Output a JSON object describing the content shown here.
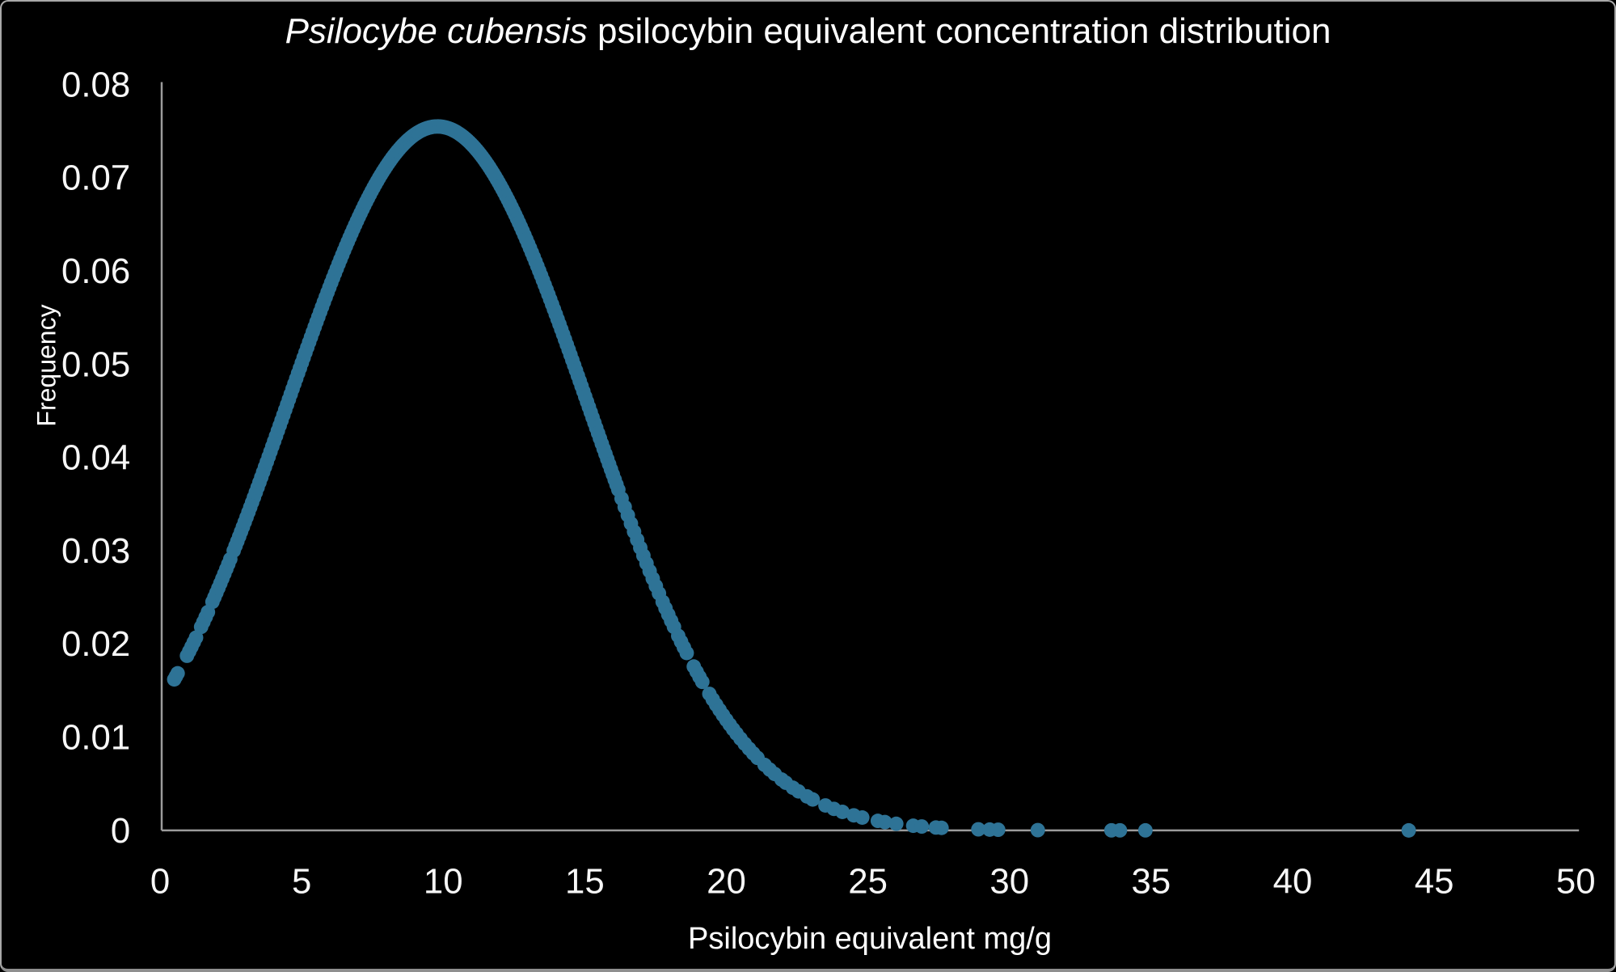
{
  "chart_data": {
    "type": "scatter",
    "title": "Psilocybe cubensis psilocybin equivalent concentration distribution",
    "title_italic_part": "Psilocybe cubensis",
    "title_regular_part": " psilocybin equivalent concentration distribution",
    "xlabel": "Psilocybin equivalent mg/g",
    "ylabel": "Frequency",
    "xlim": [
      0,
      50
    ],
    "ylim": [
      0,
      0.08
    ],
    "x_tick_labels": [
      "0",
      "5",
      "10",
      "15",
      "20",
      "25",
      "30",
      "35",
      "40",
      "45",
      "50"
    ],
    "x_tick_values": [
      0,
      5,
      10,
      15,
      20,
      25,
      30,
      35,
      40,
      45,
      50
    ],
    "y_tick_labels": [
      "0",
      "0.01",
      "0.02",
      "0.03",
      "0.04",
      "0.05",
      "0.06",
      "0.07",
      "0.08"
    ],
    "y_tick_values": [
      0,
      0.01,
      0.02,
      0.03,
      0.04,
      0.05,
      0.06,
      0.07,
      0.08
    ],
    "grid": false,
    "legend": false,
    "background_color": "#000000",
    "marker_color": "#2E7396",
    "axis_line_color": "#9B9B9B",
    "text_color": "#FFFFFF",
    "density_curve": {
      "shape": "normal",
      "mean": 9.8,
      "sd": 5.3,
      "peak_frequency": 0.0755
    },
    "band_segments": [
      {
        "start": 0.5,
        "end": 0.62,
        "step": 0.06
      },
      {
        "start": 0.95,
        "end": 1.25,
        "step": 0.08
      },
      {
        "start": 1.45,
        "end": 1.7,
        "step": 0.08
      },
      {
        "start": 1.85,
        "end": 2.5,
        "step": 0.07
      },
      {
        "start": 2.6,
        "end": 16.2,
        "step": 0.065
      },
      {
        "start": 16.3,
        "end": 17.6,
        "step": 0.11
      },
      {
        "start": 17.75,
        "end": 18.1,
        "step": 0.1
      },
      {
        "start": 18.3,
        "end": 18.65,
        "step": 0.1
      },
      {
        "start": 18.85,
        "end": 19.2,
        "step": 0.1
      },
      {
        "start": 19.4,
        "end": 20.3,
        "step": 0.12
      },
      {
        "start": 20.5,
        "end": 21.1,
        "step": 0.15
      },
      {
        "start": 21.35,
        "end": 21.75,
        "step": 0.18
      },
      {
        "start": 21.95,
        "end": 22.1,
        "step": 0.15
      }
    ],
    "tail_points_x": [
      22.35,
      22.55,
      22.85,
      23.05,
      23.5,
      23.8,
      24.1,
      24.5,
      24.8,
      25.35,
      25.6,
      26.0,
      26.6,
      26.9,
      27.4,
      27.6,
      28.9,
      29.3,
      29.6,
      31.0,
      33.6,
      33.9,
      34.8,
      44.1
    ],
    "key_points": [
      {
        "x": 0.5,
        "y": 0.016
      },
      {
        "x": 5,
        "y": 0.05
      },
      {
        "x": 9.8,
        "y": 0.0755
      },
      {
        "x": 15,
        "y": 0.047
      },
      {
        "x": 19.1,
        "y": 0.016
      },
      {
        "x": 22.2,
        "y": 0.005
      },
      {
        "x": 25.4,
        "y": 0.001
      },
      {
        "x": 31,
        "y": 3e-05
      },
      {
        "x": 44.1,
        "y": 0
      }
    ]
  }
}
